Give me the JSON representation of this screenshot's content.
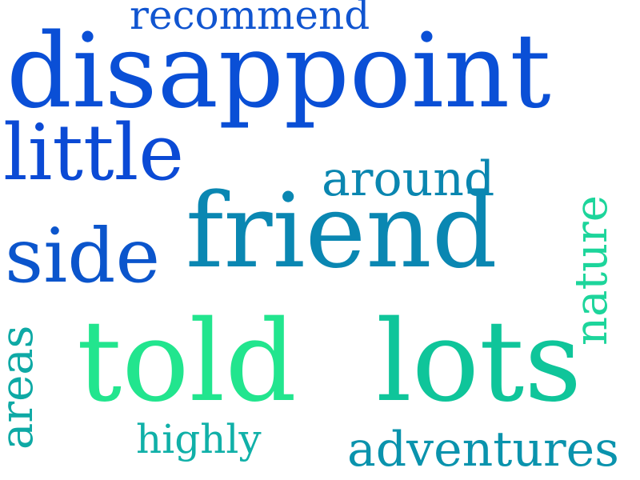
{
  "words": [
    {
      "text": "recommend",
      "color": "#1155d0"
    },
    {
      "text": "disappoint",
      "color": "#0a4fd6"
    },
    {
      "text": "little",
      "color": "#0b4ad5"
    },
    {
      "text": "around",
      "color": "#0a86b0"
    },
    {
      "text": "friend",
      "color": "#0a87b2"
    },
    {
      "text": "side",
      "color": "#0b55cc"
    },
    {
      "text": "told",
      "color": "#22e58e"
    },
    {
      "text": "lots",
      "color": "#0fc59a"
    },
    {
      "text": "highly",
      "color": "#10b0a8"
    },
    {
      "text": "adventures",
      "color": "#0a93ad"
    },
    {
      "text": "nature",
      "color": "#1dd59b"
    },
    {
      "text": "areas",
      "color": "#0ea9a5"
    }
  ]
}
